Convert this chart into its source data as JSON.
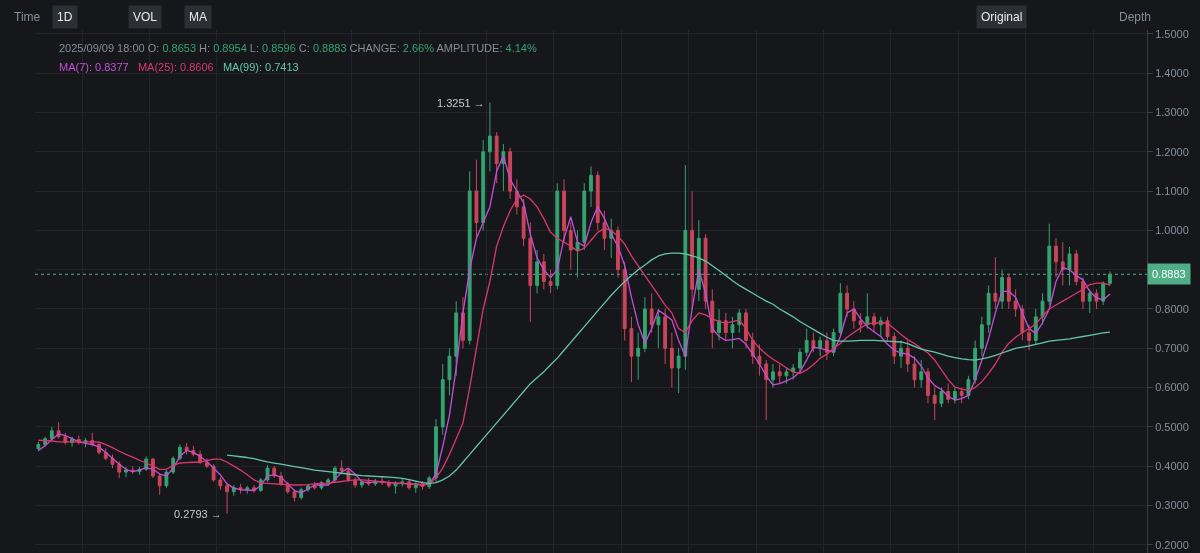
{
  "chart_data": {
    "type": "candlestick",
    "categories": [
      null,
      null,
      null,
      null,
      null,
      null,
      null,
      null,
      null,
      null,
      null,
      null,
      null,
      null,
      null,
      null,
      null,
      null,
      null,
      null,
      null,
      null,
      null,
      null,
      null,
      null,
      null,
      null,
      null,
      null,
      null,
      null,
      null,
      null,
      null,
      null,
      null,
      null,
      null,
      null,
      null,
      null,
      null,
      null,
      null,
      null,
      null,
      null,
      null,
      null,
      null,
      null,
      null,
      null,
      null,
      null,
      null,
      null,
      null,
      null,
      null,
      null,
      null,
      null,
      null,
      null,
      null,
      null,
      null,
      null,
      null,
      null,
      null,
      null,
      null,
      null,
      null,
      null,
      null,
      null,
      null,
      null,
      null,
      null,
      null,
      null,
      null,
      null,
      null,
      null,
      null,
      null,
      null,
      null,
      null,
      null,
      null,
      null,
      null,
      null,
      null,
      null,
      null,
      null,
      null,
      null,
      null,
      null,
      null,
      null,
      null,
      null,
      null,
      null,
      null,
      null,
      null,
      null,
      null,
      null,
      null,
      null,
      null,
      null,
      null,
      null,
      null,
      null,
      null,
      null,
      null,
      null,
      null,
      null,
      null,
      null,
      null,
      null,
      null,
      null,
      null,
      null,
      null,
      null,
      null,
      null,
      null,
      null,
      null,
      null,
      null,
      null,
      null,
      null,
      null,
      null,
      null,
      null,
      null,
      null
    ],
    "ohlc": [
      [
        0.445,
        0.462,
        0.438,
        0.455
      ],
      [
        0.455,
        0.475,
        0.45,
        0.47
      ],
      [
        0.47,
        0.5,
        0.465,
        0.49
      ],
      [
        0.49,
        0.512,
        0.47,
        0.475
      ],
      [
        0.475,
        0.485,
        0.455,
        0.46
      ],
      [
        0.46,
        0.475,
        0.45,
        0.468
      ],
      [
        0.468,
        0.478,
        0.455,
        0.46
      ],
      [
        0.46,
        0.472,
        0.448,
        0.465
      ],
      [
        0.465,
        0.485,
        0.45,
        0.455
      ],
      [
        0.455,
        0.462,
        0.43,
        0.435
      ],
      [
        0.435,
        0.445,
        0.415,
        0.42
      ],
      [
        0.42,
        0.43,
        0.395,
        0.405
      ],
      [
        0.405,
        0.412,
        0.37,
        0.385
      ],
      [
        0.385,
        0.398,
        0.372,
        0.39
      ],
      [
        0.39,
        0.4,
        0.38,
        0.386
      ],
      [
        0.386,
        0.398,
        0.378,
        0.392
      ],
      [
        0.392,
        0.425,
        0.388,
        0.418
      ],
      [
        0.418,
        0.42,
        0.37,
        0.375
      ],
      [
        0.375,
        0.38,
        0.327,
        0.35
      ],
      [
        0.35,
        0.39,
        0.345,
        0.385
      ],
      [
        0.385,
        0.425,
        0.38,
        0.42
      ],
      [
        0.42,
        0.455,
        0.415,
        0.448
      ],
      [
        0.448,
        0.459,
        0.43,
        0.44
      ],
      [
        0.44,
        0.452,
        0.425,
        0.43
      ],
      [
        0.43,
        0.44,
        0.405,
        0.41
      ],
      [
        0.41,
        0.42,
        0.395,
        0.4
      ],
      [
        0.4,
        0.405,
        0.36,
        0.365
      ],
      [
        0.365,
        0.372,
        0.34,
        0.35
      ],
      [
        0.35,
        0.358,
        0.2793,
        0.335
      ],
      [
        0.335,
        0.352,
        0.325,
        0.345
      ],
      [
        0.345,
        0.355,
        0.33,
        0.34
      ],
      [
        0.34,
        0.35,
        0.33,
        0.345
      ],
      [
        0.345,
        0.352,
        0.332,
        0.338
      ],
      [
        0.338,
        0.37,
        0.335,
        0.365
      ],
      [
        0.365,
        0.403,
        0.36,
        0.395
      ],
      [
        0.395,
        0.4,
        0.37,
        0.375
      ],
      [
        0.375,
        0.385,
        0.35,
        0.355
      ],
      [
        0.355,
        0.36,
        0.33,
        0.335
      ],
      [
        0.335,
        0.34,
        0.31,
        0.32
      ],
      [
        0.32,
        0.345,
        0.315,
        0.34
      ],
      [
        0.34,
        0.355,
        0.335,
        0.35
      ],
      [
        0.35,
        0.36,
        0.34,
        0.345
      ],
      [
        0.345,
        0.362,
        0.34,
        0.358
      ],
      [
        0.358,
        0.37,
        0.35,
        0.365
      ],
      [
        0.365,
        0.4,
        0.36,
        0.395
      ],
      [
        0.395,
        0.415,
        0.385,
        0.388
      ],
      [
        0.388,
        0.395,
        0.36,
        0.365
      ],
      [
        0.365,
        0.372,
        0.345,
        0.352
      ],
      [
        0.352,
        0.365,
        0.345,
        0.36
      ],
      [
        0.36,
        0.37,
        0.35,
        0.355
      ],
      [
        0.355,
        0.368,
        0.35,
        0.362
      ],
      [
        0.362,
        0.372,
        0.352,
        0.358
      ],
      [
        0.358,
        0.365,
        0.345,
        0.35
      ],
      [
        0.35,
        0.362,
        0.33,
        0.355
      ],
      [
        0.355,
        0.368,
        0.348,
        0.36
      ],
      [
        0.36,
        0.365,
        0.34,
        0.345
      ],
      [
        0.345,
        0.36,
        0.332,
        0.355
      ],
      [
        0.355,
        0.362,
        0.34,
        0.348
      ],
      [
        0.348,
        0.375,
        0.342,
        0.37
      ],
      [
        0.37,
        0.52,
        0.36,
        0.5
      ],
      [
        0.5,
        0.66,
        0.48,
        0.62
      ],
      [
        0.62,
        0.7,
        0.58,
        0.68
      ],
      [
        0.68,
        0.82,
        0.63,
        0.79
      ],
      [
        0.79,
        0.83,
        0.7,
        0.72
      ],
      [
        0.72,
        1.15,
        0.71,
        1.1
      ],
      [
        1.1,
        1.18,
        0.98,
        1.02
      ],
      [
        1.02,
        1.23,
        1.0,
        1.2
      ],
      [
        1.2,
        1.3251,
        1.15,
        1.24
      ],
      [
        1.24,
        1.25,
        1.12,
        1.17
      ],
      [
        1.17,
        1.22,
        1.1,
        1.2
      ],
      [
        1.2,
        1.21,
        1.08,
        1.1
      ],
      [
        1.1,
        1.13,
        1.04,
        1.06
      ],
      [
        1.06,
        1.08,
        0.96,
        0.98
      ],
      [
        0.98,
        1.02,
        0.767,
        0.86
      ],
      [
        0.86,
        0.95,
        0.84,
        0.92
      ],
      [
        0.92,
        0.94,
        0.85,
        0.87
      ],
      [
        0.87,
        0.9,
        0.84,
        0.86
      ],
      [
        0.86,
        1.12,
        0.85,
        1.1
      ],
      [
        1.1,
        1.13,
        0.97,
        1.0
      ],
      [
        1.0,
        1.02,
        0.9,
        0.95
      ],
      [
        0.95,
        1.0,
        0.88,
        0.97
      ],
      [
        0.97,
        1.12,
        0.95,
        1.1
      ],
      [
        1.1,
        1.163,
        1.06,
        1.14
      ],
      [
        1.14,
        1.15,
        1.0,
        1.02
      ],
      [
        1.02,
        1.05,
        0.95,
        0.98
      ],
      [
        0.98,
        1.03,
        0.93,
        1.0
      ],
      [
        1.0,
        1.01,
        0.88,
        0.9
      ],
      [
        0.9,
        0.92,
        0.72,
        0.75
      ],
      [
        0.75,
        0.78,
        0.614,
        0.68
      ],
      [
        0.68,
        0.74,
        0.62,
        0.7
      ],
      [
        0.7,
        0.83,
        0.69,
        0.8
      ],
      [
        0.8,
        0.84,
        0.74,
        0.76
      ],
      [
        0.76,
        0.8,
        0.7,
        0.78
      ],
      [
        0.78,
        0.8,
        0.66,
        0.7
      ],
      [
        0.7,
        0.74,
        0.6,
        0.65
      ],
      [
        0.65,
        0.7,
        0.586,
        0.68
      ],
      [
        0.68,
        1.166,
        0.645,
        1.0
      ],
      [
        1.0,
        1.1,
        0.8,
        0.85
      ],
      [
        0.85,
        1.026,
        0.82,
        0.98
      ],
      [
        0.98,
        0.99,
        0.8,
        0.82
      ],
      [
        0.82,
        0.85,
        0.7,
        0.74
      ],
      [
        0.74,
        0.8,
        0.72,
        0.77
      ],
      [
        0.77,
        0.79,
        0.72,
        0.74
      ],
      [
        0.74,
        0.78,
        0.7,
        0.76
      ],
      [
        0.76,
        0.8,
        0.74,
        0.79
      ],
      [
        0.79,
        0.8,
        0.7,
        0.72
      ],
      [
        0.72,
        0.74,
        0.66,
        0.68
      ],
      [
        0.68,
        0.71,
        0.63,
        0.66
      ],
      [
        0.66,
        0.67,
        0.517,
        0.62
      ],
      [
        0.62,
        0.66,
        0.6,
        0.64
      ],
      [
        0.64,
        0.66,
        0.61,
        0.63
      ],
      [
        0.63,
        0.65,
        0.61,
        0.64
      ],
      [
        0.64,
        0.66,
        0.62,
        0.65
      ],
      [
        0.65,
        0.7,
        0.64,
        0.69
      ],
      [
        0.69,
        0.75,
        0.68,
        0.72
      ],
      [
        0.72,
        0.74,
        0.69,
        0.7
      ],
      [
        0.7,
        0.73,
        0.68,
        0.72
      ],
      [
        0.72,
        0.74,
        0.67,
        0.69
      ],
      [
        0.69,
        0.75,
        0.68,
        0.74
      ],
      [
        0.74,
        0.866,
        0.73,
        0.84
      ],
      [
        0.84,
        0.86,
        0.78,
        0.8
      ],
      [
        0.8,
        0.82,
        0.75,
        0.77
      ],
      [
        0.77,
        0.79,
        0.74,
        0.76
      ],
      [
        0.76,
        0.84,
        0.75,
        0.78
      ],
      [
        0.78,
        0.79,
        0.74,
        0.76
      ],
      [
        0.76,
        0.78,
        0.73,
        0.77
      ],
      [
        0.77,
        0.78,
        0.72,
        0.73
      ],
      [
        0.73,
        0.74,
        0.66,
        0.68
      ],
      [
        0.68,
        0.72,
        0.65,
        0.7
      ],
      [
        0.7,
        0.72,
        0.64,
        0.66
      ],
      [
        0.66,
        0.68,
        0.6,
        0.62
      ],
      [
        0.62,
        0.67,
        0.6,
        0.64
      ],
      [
        0.64,
        0.65,
        0.56,
        0.58
      ],
      [
        0.58,
        0.6,
        0.517,
        0.56
      ],
      [
        0.56,
        0.6,
        0.55,
        0.59
      ],
      [
        0.59,
        0.61,
        0.56,
        0.57
      ],
      [
        0.57,
        0.6,
        0.56,
        0.59
      ],
      [
        0.59,
        0.6,
        0.56,
        0.58
      ],
      [
        0.58,
        0.63,
        0.57,
        0.62
      ],
      [
        0.62,
        0.72,
        0.61,
        0.7
      ],
      [
        0.7,
        0.78,
        0.68,
        0.76
      ],
      [
        0.76,
        0.86,
        0.74,
        0.84
      ],
      [
        0.84,
        0.932,
        0.8,
        0.82
      ],
      [
        0.82,
        0.9,
        0.8,
        0.88
      ],
      [
        0.88,
        0.89,
        0.8,
        0.82
      ],
      [
        0.82,
        0.85,
        0.78,
        0.8
      ],
      [
        0.8,
        0.81,
        0.72,
        0.74
      ],
      [
        0.74,
        0.76,
        0.695,
        0.72
      ],
      [
        0.72,
        0.8,
        0.71,
        0.78
      ],
      [
        0.78,
        0.84,
        0.76,
        0.82
      ],
      [
        0.82,
        1.017,
        0.81,
        0.96
      ],
      [
        0.96,
        0.98,
        0.88,
        0.92
      ],
      [
        0.92,
        0.97,
        0.86,
        0.9
      ],
      [
        0.9,
        0.958,
        0.86,
        0.94
      ],
      [
        0.94,
        0.95,
        0.86,
        0.87
      ],
      [
        0.87,
        0.88,
        0.8,
        0.82
      ],
      [
        0.82,
        0.85,
        0.79,
        0.84
      ],
      [
        0.84,
        0.85,
        0.8,
        0.82
      ],
      [
        0.82,
        0.87,
        0.81,
        0.8653
      ],
      [
        0.8653,
        0.8954,
        0.8596,
        0.8883
      ]
    ],
    "colors": [
      "#35a370",
      "#35a370",
      "#35a370",
      "#c9455a",
      "#c9455a",
      "#35a370",
      "#c9455a",
      "#35a370",
      "#c9455a",
      "#c9455a",
      "#c9455a",
      "#c9455a",
      "#c9455a",
      "#35a370",
      "#c9455a",
      "#35a370",
      "#35a370",
      "#c9455a",
      "#c9455a",
      "#35a370",
      "#35a370",
      "#35a370",
      "#c9455a",
      "#c9455a",
      "#c9455a",
      "#c9455a",
      "#c9455a",
      "#c9455a",
      "#c9455a",
      "#35a370",
      "#c9455a",
      "#35a370",
      "#c9455a",
      "#35a370",
      "#35a370",
      "#c9455a",
      "#c9455a",
      "#c9455a",
      "#c9455a",
      "#35a370",
      "#35a370",
      "#c9455a",
      "#35a370",
      "#35a370",
      "#35a370",
      "#c9455a",
      "#c9455a",
      "#c9455a",
      "#35a370",
      "#c9455a",
      "#35a370",
      "#c9455a",
      "#c9455a",
      "#35a370",
      "#35a370",
      "#c9455a",
      "#35a370",
      "#c9455a",
      "#35a370",
      "#35a370",
      "#35a370",
      "#35a370",
      "#35a370",
      "#c9455a",
      "#35a370",
      "#c9455a",
      "#35a370",
      "#35a370",
      "#c9455a",
      "#35a370",
      "#c9455a",
      "#c9455a",
      "#c9455a",
      "#c9455a",
      "#35a370",
      "#c9455a",
      "#c9455a",
      "#35a370",
      "#c9455a",
      "#c9455a",
      "#35a370",
      "#35a370",
      "#35a370",
      "#c9455a",
      "#c9455a",
      "#35a370",
      "#c9455a",
      "#c9455a",
      "#c9455a",
      "#35a370",
      "#35a370",
      "#c9455a",
      "#35a370",
      "#c9455a",
      "#c9455a",
      "#35a370",
      "#35a370",
      "#c9455a",
      "#35a370",
      "#c9455a",
      "#c9455a",
      "#35a370",
      "#c9455a",
      "#35a370",
      "#35a370",
      "#c9455a",
      "#c9455a",
      "#c9455a",
      "#c9455a",
      "#35a370",
      "#c9455a",
      "#35a370",
      "#35a370",
      "#35a370",
      "#35a370",
      "#c9455a",
      "#35a370",
      "#c9455a",
      "#35a370",
      "#35a370",
      "#c9455a",
      "#c9455a",
      "#c9455a",
      "#35a370",
      "#c9455a",
      "#35a370",
      "#c9455a",
      "#c9455a",
      "#35a370",
      "#c9455a",
      "#c9455a",
      "#35a370",
      "#c9455a",
      "#c9455a",
      "#35a370",
      "#c9455a",
      "#35a370",
      "#c9455a",
      "#35a370",
      "#35a370",
      "#35a370",
      "#35a370",
      "#c9455a",
      "#35a370",
      "#c9455a",
      "#c9455a",
      "#c9455a",
      "#c9455a",
      "#35a370",
      "#35a370",
      "#35a370",
      "#c9455a",
      "#c9455a",
      "#35a370",
      "#c9455a",
      "#c9455a",
      "#35a370",
      "#c9455a",
      "#35a370",
      "#35a370"
    ],
    "series": [
      {
        "name": "MA(7): 0.8377",
        "type": "line",
        "color": "#c44fd6",
        "values": [
          0.44,
          0.452,
          0.468,
          0.482,
          0.478,
          0.47,
          0.462,
          0.458,
          0.455,
          0.449,
          0.435,
          0.42,
          0.405,
          0.392,
          0.386,
          0.39,
          0.396,
          0.392,
          0.38,
          0.375,
          0.395,
          0.425,
          0.44,
          0.435,
          0.425,
          0.412,
          0.395,
          0.378,
          0.355,
          0.344,
          0.34,
          0.339,
          0.338,
          0.35,
          0.375,
          0.378,
          0.372,
          0.355,
          0.338,
          0.332,
          0.342,
          0.352,
          0.352,
          0.352,
          0.365,
          0.385,
          0.395,
          0.38,
          0.36,
          0.358,
          0.36,
          0.36,
          0.358,
          0.357,
          0.356,
          0.355,
          0.354,
          0.352,
          0.355,
          0.38,
          0.45,
          0.53,
          0.65,
          0.79,
          0.9,
          0.98,
          1.02,
          1.06,
          1.15,
          1.19,
          1.13,
          1.1,
          1.07,
          0.99,
          0.93,
          0.9,
          0.88,
          0.9,
          0.98,
          1.034,
          0.97,
          0.96,
          1.02,
          1.06,
          1.03,
          0.99,
          0.96,
          0.91,
          0.83,
          0.76,
          0.713,
          0.75,
          0.797,
          0.785,
          0.772,
          0.72,
          0.68,
          0.8,
          0.9,
          0.84,
          0.75,
          0.73,
          0.72,
          0.722,
          0.725,
          0.71,
          0.685,
          0.66,
          0.63,
          0.607,
          0.61,
          0.617,
          0.625,
          0.64,
          0.67,
          0.703,
          0.7,
          0.695,
          0.69,
          0.73,
          0.79,
          0.8,
          0.775,
          0.755,
          0.742,
          0.73,
          0.71,
          0.695,
          0.688,
          0.685,
          0.675,
          0.655,
          0.625,
          0.605,
          0.595,
          0.578,
          0.568,
          0.572,
          0.58,
          0.62,
          0.67,
          0.725,
          0.79,
          0.845,
          0.845,
          0.83,
          0.79,
          0.75,
          0.738,
          0.765,
          0.8,
          0.87,
          0.905,
          0.9,
          0.885,
          0.874,
          0.845,
          0.828,
          0.823,
          0.838
        ]
      },
      {
        "name": "MA(25): 0.8606",
        "type": "line",
        "color": "#d9386b",
        "values": [
          0.466,
          0.465,
          0.464,
          0.462,
          0.462,
          0.462,
          0.462,
          0.462,
          0.462,
          0.461,
          0.455,
          0.447,
          0.438,
          0.43,
          0.423,
          0.415,
          0.408,
          0.4,
          0.392,
          0.392,
          0.402,
          0.408,
          0.409,
          0.41,
          0.41,
          0.414,
          0.418,
          0.418,
          0.41,
          0.4,
          0.39,
          0.378,
          0.365,
          0.357,
          0.356,
          0.355,
          0.354,
          0.353,
          0.352,
          0.352,
          0.353,
          0.355,
          0.356,
          0.357,
          0.359,
          0.361,
          0.363,
          0.365,
          0.365,
          0.364,
          0.362,
          0.36,
          0.358,
          0.357,
          0.356,
          0.355,
          0.354,
          0.353,
          0.355,
          0.37,
          0.395,
          0.43,
          0.47,
          0.51,
          0.6,
          0.7,
          0.8,
          0.87,
          0.96,
          1.01,
          1.05,
          1.08,
          1.09,
          1.08,
          1.06,
          1.03,
          0.995,
          0.98,
          0.97,
          0.96,
          0.947,
          0.955,
          0.975,
          0.995,
          1.005,
          1.0,
          0.985,
          0.965,
          0.935,
          0.91,
          0.885,
          0.86,
          0.835,
          0.81,
          0.79,
          0.75,
          0.74,
          0.77,
          0.79,
          0.785,
          0.775,
          0.768,
          0.764,
          0.768,
          0.772,
          0.75,
          0.72,
          0.7,
          0.685,
          0.672,
          0.662,
          0.65,
          0.64,
          0.636,
          0.645,
          0.658,
          0.675,
          0.685,
          0.7,
          0.712,
          0.728,
          0.74,
          0.752,
          0.762,
          0.764,
          0.765,
          0.764,
          0.75,
          0.735,
          0.722,
          0.712,
          0.7,
          0.688,
          0.67,
          0.645,
          0.62,
          0.601,
          0.596,
          0.593,
          0.6,
          0.615,
          0.636,
          0.66,
          0.69,
          0.713,
          0.728,
          0.74,
          0.75,
          0.762,
          0.782,
          0.8,
          0.81,
          0.82,
          0.83,
          0.84,
          0.85,
          0.862,
          0.866,
          0.866,
          0.861
        ]
      },
      {
        "name": "MA(99): 0.7413",
        "type": "line",
        "color": "#63c7ad",
        "values": [
          null,
          null,
          null,
          null,
          null,
          null,
          null,
          null,
          null,
          null,
          null,
          null,
          null,
          null,
          null,
          null,
          null,
          null,
          null,
          null,
          null,
          null,
          null,
          null,
          null,
          null,
          null,
          null,
          0.428,
          0.426,
          0.424,
          0.422,
          0.419,
          0.415,
          0.411,
          0.408,
          0.405,
          0.402,
          0.399,
          0.396,
          0.393,
          0.39,
          0.388,
          0.386,
          0.384,
          0.382,
          0.38,
          0.378,
          0.376,
          0.375,
          0.374,
          0.373,
          0.372,
          0.371,
          0.369,
          0.366,
          0.362,
          0.358,
          0.356,
          0.358,
          0.365,
          0.375,
          0.39,
          0.41,
          0.43,
          0.45,
          0.47,
          0.49,
          0.51,
          0.53,
          0.55,
          0.57,
          0.59,
          0.61,
          0.625,
          0.64,
          0.658,
          0.675,
          0.695,
          0.715,
          0.735,
          0.755,
          0.775,
          0.795,
          0.815,
          0.835,
          0.853,
          0.87,
          0.885,
          0.9,
          0.912,
          0.925,
          0.935,
          0.94,
          0.942,
          0.942,
          0.94,
          0.935,
          0.93,
          0.922,
          0.91,
          0.898,
          0.885,
          0.872,
          0.86,
          0.85,
          0.84,
          0.83,
          0.82,
          0.812,
          0.8,
          0.79,
          0.78,
          0.768,
          0.758,
          0.748,
          0.738,
          0.728,
          0.72,
          0.718,
          0.718,
          0.719,
          0.72,
          0.72,
          0.72,
          0.719,
          0.718,
          0.717,
          0.716,
          0.712,
          0.705,
          0.698,
          0.694,
          0.69,
          0.685,
          0.68,
          0.676,
          0.673,
          0.671,
          0.67,
          0.673,
          0.677,
          0.682,
          0.688,
          0.694,
          0.7,
          0.703,
          0.706,
          0.71,
          0.714,
          0.718,
          0.72,
          0.722,
          0.724,
          0.727,
          0.73,
          0.733,
          0.736,
          0.739,
          0.741
        ]
      }
    ],
    "ylim": [
      0.179,
      1.51
    ],
    "yticks": [
      {
        "value": 0.2,
        "label": "0.2000"
      },
      {
        "value": 0.3,
        "label": "0.3000"
      },
      {
        "value": 0.4,
        "label": "0.4000"
      },
      {
        "value": 0.5,
        "label": "0.5000"
      },
      {
        "value": 0.6,
        "label": "0.6000"
      },
      {
        "value": 0.7,
        "label": "0.7000"
      },
      {
        "value": 0.8,
        "label": "0.8000"
      },
      {
        "value": 0.9,
        "label": null
      },
      {
        "value": 1.0,
        "label": "1.0000"
      },
      {
        "value": 1.1,
        "label": "1.1000"
      },
      {
        "value": 1.2,
        "label": "1.2000"
      },
      {
        "value": 1.3,
        "label": "1.3000"
      },
      {
        "value": 1.4,
        "label": "1.4000"
      },
      {
        "value": 1.5,
        "label": "1.5000"
      }
    ],
    "grid": true,
    "legend": "top left",
    "tick_labels": "y",
    "ref_lines": [
      {
        "axis": "y",
        "value": 0.8883,
        "label": "0.8883",
        "color": "#4fae88",
        "line_style": "dotted"
      }
    ],
    "annotations": [
      "Time",
      "1D",
      "VOL",
      "MA",
      "Original",
      "Depth",
      "2025/09/09 18:00 O: 0.8653 H: 0.8954 L: 0.8596 C: 0.8883 CHANGE: 2.66% AMPLITUDE: 4.14%",
      "1.3251 →",
      "0.2793 →"
    ]
  }
}
